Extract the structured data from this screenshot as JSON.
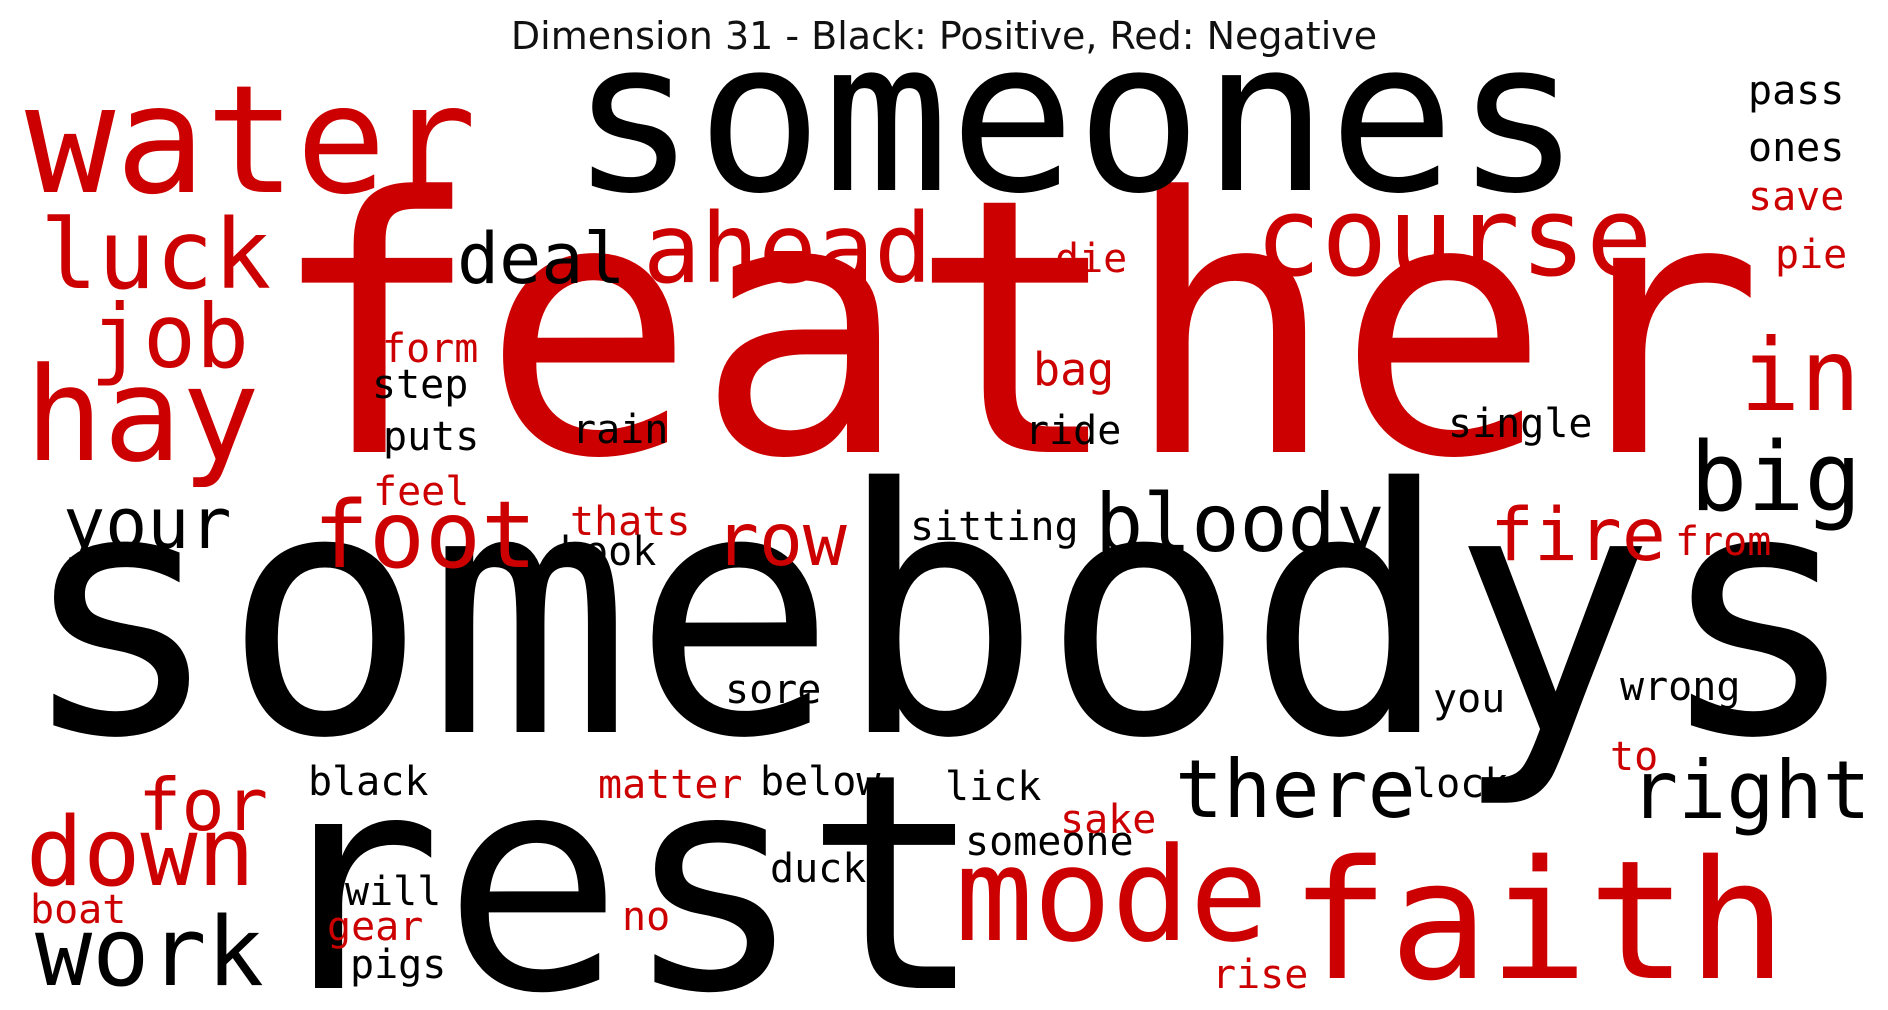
{
  "title": "Dimension 31 - Black: Positive, Red: Negative",
  "colors": {
    "positive": "#000000",
    "negative": "#cc0000"
  },
  "words": [
    {
      "text": "feather",
      "sign": "negative"
    },
    {
      "text": "somebodys",
      "sign": "positive"
    },
    {
      "text": "someones",
      "sign": "positive"
    },
    {
      "text": "rest",
      "sign": "positive"
    },
    {
      "text": "water",
      "sign": "negative"
    },
    {
      "text": "faith",
      "sign": "negative"
    },
    {
      "text": "course",
      "sign": "negative"
    },
    {
      "text": "mode",
      "sign": "negative"
    },
    {
      "text": "hay",
      "sign": "negative"
    },
    {
      "text": "ahead",
      "sign": "negative"
    },
    {
      "text": "luck",
      "sign": "negative"
    },
    {
      "text": "job",
      "sign": "negative"
    },
    {
      "text": "foot",
      "sign": "negative"
    },
    {
      "text": "down",
      "sign": "negative"
    },
    {
      "text": "work",
      "sign": "positive"
    },
    {
      "text": "big",
      "sign": "positive"
    },
    {
      "text": "in",
      "sign": "negative"
    },
    {
      "text": "there",
      "sign": "positive"
    },
    {
      "text": "right",
      "sign": "positive"
    },
    {
      "text": "bloody",
      "sign": "positive"
    },
    {
      "text": "deal",
      "sign": "positive"
    },
    {
      "text": "your",
      "sign": "positive"
    },
    {
      "text": "fire",
      "sign": "negative"
    },
    {
      "text": "for",
      "sign": "negative"
    },
    {
      "text": "row",
      "sign": "negative"
    },
    {
      "text": "pass",
      "sign": "positive"
    },
    {
      "text": "ones",
      "sign": "positive"
    },
    {
      "text": "save",
      "sign": "negative"
    },
    {
      "text": "pie",
      "sign": "negative"
    },
    {
      "text": "die",
      "sign": "negative"
    },
    {
      "text": "bag",
      "sign": "negative"
    },
    {
      "text": "form",
      "sign": "negative"
    },
    {
      "text": "step",
      "sign": "positive"
    },
    {
      "text": "puts",
      "sign": "positive"
    },
    {
      "text": "rain",
      "sign": "positive"
    },
    {
      "text": "ride",
      "sign": "positive"
    },
    {
      "text": "single",
      "sign": "positive"
    },
    {
      "text": "feel",
      "sign": "negative"
    },
    {
      "text": "thats",
      "sign": "negative"
    },
    {
      "text": "book",
      "sign": "positive"
    },
    {
      "text": "sitting",
      "sign": "positive"
    },
    {
      "text": "from",
      "sign": "negative"
    },
    {
      "text": "sore",
      "sign": "positive"
    },
    {
      "text": "you",
      "sign": "positive"
    },
    {
      "text": "wrong",
      "sign": "positive"
    },
    {
      "text": "to",
      "sign": "negative"
    },
    {
      "text": "black",
      "sign": "positive"
    },
    {
      "text": "matter",
      "sign": "negative"
    },
    {
      "text": "below",
      "sign": "positive"
    },
    {
      "text": "lick",
      "sign": "positive"
    },
    {
      "text": "lock",
      "sign": "positive"
    },
    {
      "text": "sake",
      "sign": "negative"
    },
    {
      "text": "someone",
      "sign": "positive"
    },
    {
      "text": "duck",
      "sign": "positive"
    },
    {
      "text": "will",
      "sign": "positive"
    },
    {
      "text": "boat",
      "sign": "negative"
    },
    {
      "text": "gear",
      "sign": "negative"
    },
    {
      "text": "no",
      "sign": "negative"
    },
    {
      "text": "pigs",
      "sign": "positive"
    },
    {
      "text": "rise",
      "sign": "negative"
    }
  ]
}
